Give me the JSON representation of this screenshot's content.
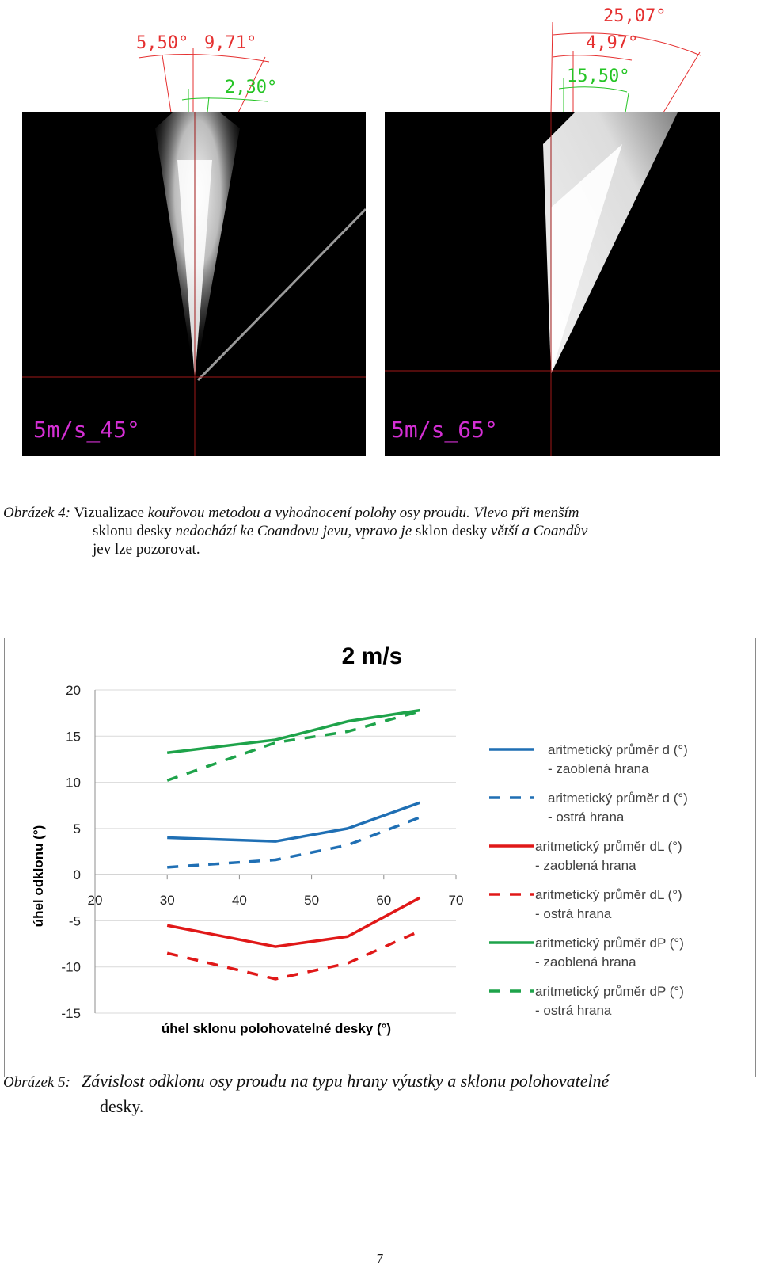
{
  "figure4": {
    "left_image": {
      "label": "5m/s_45°",
      "angles": [
        "5,50°",
        "9,71°",
        "2,30°"
      ]
    },
    "right_image": {
      "label": "5m/s_65°",
      "angles": [
        "25,07°",
        "4,97°",
        "15,50°"
      ]
    },
    "caption": {
      "lead": "Obrázek 4:",
      "p1": " Vizualizace ",
      "p2": "kouřovou metodou a vyhodnocení polohy osy proudu. Vlevo při menším",
      "p3": "sklonu desky ",
      "p4": "nedochází ke Coandovu jevu, vpravo je",
      "p5": " sklon desky  ",
      "p6": "větší  a Coandův",
      "p7": "jev lze pozorovat."
    }
  },
  "chart_data": {
    "type": "line",
    "title": "2 m/s",
    "xlabel": "úhel sklonu polohovatelné desky (°)",
    "ylabel": "úhel odklonu (°)",
    "xlim": [
      20,
      70
    ],
    "ylim": [
      -15,
      20
    ],
    "xticks": [
      20,
      30,
      40,
      50,
      60,
      70
    ],
    "yticks": [
      -15,
      -10,
      -5,
      0,
      5,
      10,
      15,
      20
    ],
    "legend_position": "right",
    "series": [
      {
        "name": "aritmetický průměr d (°) - zaoblená hrana",
        "name_lines": [
          "aritmetický průměr d (°)",
          "- zaoblená hrana"
        ],
        "color": "#1f6fb4",
        "dash": "solid",
        "x": [
          30,
          45,
          55,
          65
        ],
        "y": [
          4.0,
          3.6,
          5.0,
          7.8
        ]
      },
      {
        "name": "aritmetický průměr d (°) - ostrá hrana",
        "name_lines": [
          "aritmetický průměr d (°)",
          "- ostrá hrana"
        ],
        "color": "#1f6fb4",
        "dash": "dashed",
        "x": [
          30,
          45,
          55,
          65
        ],
        "y": [
          0.8,
          1.6,
          3.2,
          6.2
        ]
      },
      {
        "name": "aritmetický průměr dL (°) - zaoblená hrana",
        "name_lines": [
          "aritmetický průměr dL (°)",
          "- zaoblená hrana"
        ],
        "color": "#e01818",
        "dash": "solid",
        "x": [
          30,
          45,
          55,
          65
        ],
        "y": [
          -5.5,
          -7.8,
          -6.7,
          -2.5
        ]
      },
      {
        "name": "aritmetický průměr dL (°) - ostrá hrana",
        "name_lines": [
          "aritmetický průměr dL (°)",
          "- ostrá hrana"
        ],
        "color": "#e01818",
        "dash": "dashed",
        "x": [
          30,
          45,
          55,
          65
        ],
        "y": [
          -8.5,
          -11.3,
          -9.6,
          -6.1
        ]
      },
      {
        "name": "aritmetický průměr dP (°) - zaoblená hrana",
        "name_lines": [
          "aritmetický průměr dP (°)",
          "- zaoblená hrana"
        ],
        "color": "#1ea34a",
        "dash": "solid",
        "x": [
          30,
          45,
          55,
          65
        ],
        "y": [
          13.2,
          14.6,
          16.6,
          17.8
        ]
      },
      {
        "name": "aritmetický průměr dP (°) - ostrá hrana",
        "name_lines": [
          "aritmetický průměr dP (°)",
          "- ostrá hrana"
        ],
        "color": "#1ea34a",
        "dash": "dashed",
        "x": [
          30,
          45,
          55,
          65
        ],
        "y": [
          10.2,
          14.3,
          15.5,
          17.7
        ]
      }
    ]
  },
  "figure5": {
    "caption": {
      "lead": "Obrázek 5:",
      "text": "Závislost  odklonu osy proudu na typu hrany výustky a sklonu polohovatelné",
      "cont": "desky."
    }
  },
  "page": {
    "number": "7"
  },
  "colors": {
    "annotation_red": "#e53030",
    "annotation_green": "#25c425",
    "label_magenta": "#d42fd4",
    "photo_background": "#000000"
  }
}
